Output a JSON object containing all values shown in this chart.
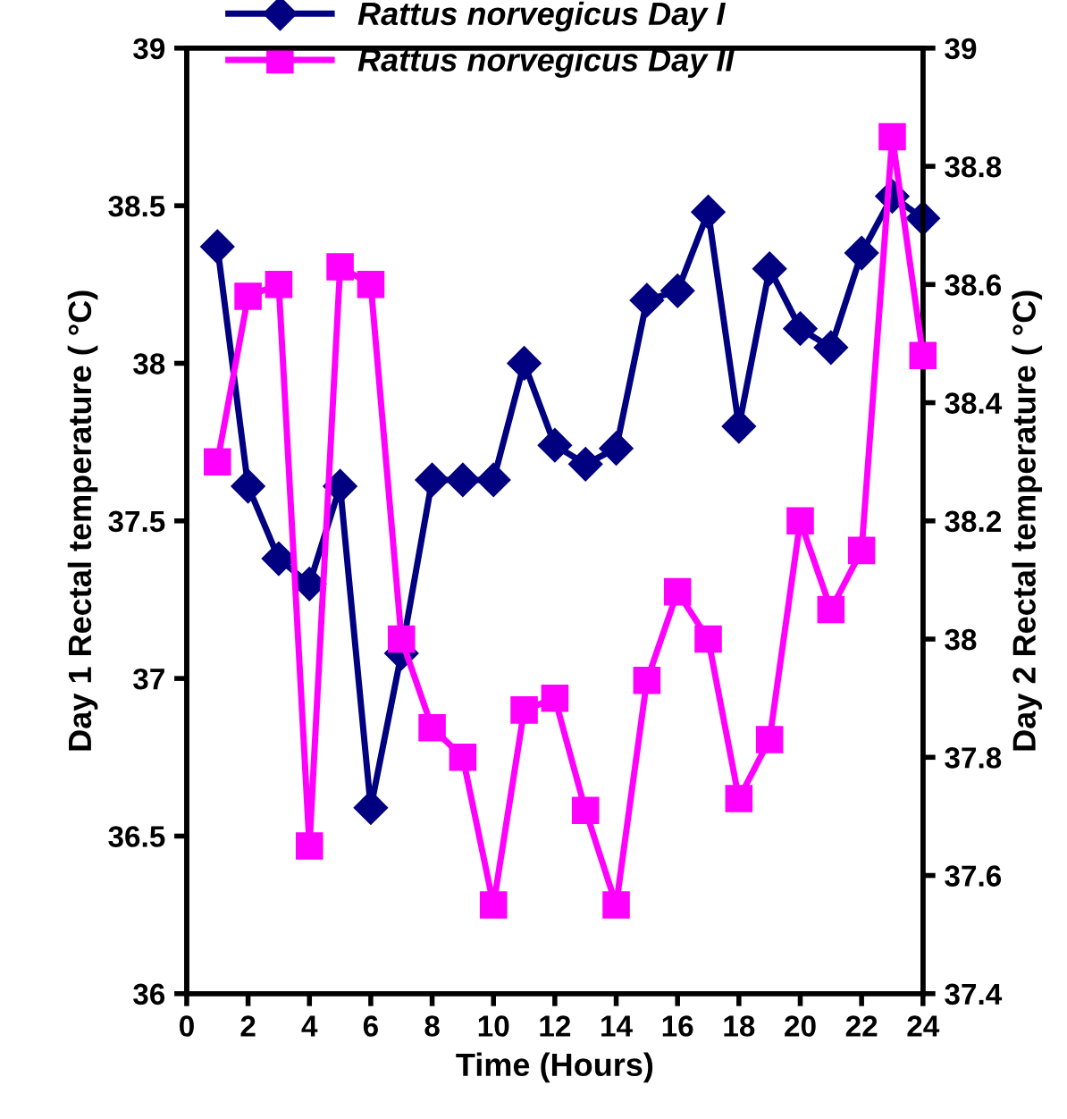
{
  "chart_data": {
    "type": "line",
    "xlabel": "Time (Hours)",
    "ylabel": "Day 1 Rectal temperature ( °C)",
    "y2label": "Day 2 Rectal temperature ( °C)",
    "x": [
      1,
      2,
      3,
      4,
      5,
      6,
      7,
      8,
      9,
      10,
      11,
      12,
      13,
      14,
      15,
      16,
      17,
      18,
      19,
      20,
      21,
      22,
      23,
      24
    ],
    "series": [
      {
        "name": "Rattus norvegicus Day I",
        "color": "#000080",
        "marker": "diamond",
        "values": [
          38.37,
          37.61,
          37.38,
          37.3,
          37.61,
          36.59,
          37.08,
          37.63,
          37.63,
          37.63,
          38.0,
          37.74,
          37.68,
          37.73,
          38.2,
          38.23,
          38.48,
          37.8,
          38.3,
          38.11,
          38.05,
          38.35,
          38.53,
          38.46
        ]
      },
      {
        "name": "Rattus norvegicus Day II",
        "color": "#ff00ff",
        "marker": "square",
        "axis": "y2",
        "values": [
          38.3,
          38.58,
          38.6,
          37.65,
          38.63,
          38.6,
          38.0,
          37.85,
          37.8,
          37.55,
          37.88,
          37.9,
          37.71,
          37.55,
          37.93,
          38.08,
          38.0,
          37.73,
          37.83,
          38.2,
          38.05,
          38.15,
          38.85,
          38.48
        ]
      }
    ],
    "xlim": [
      0,
      24
    ],
    "xticks": [
      0,
      2,
      4,
      6,
      8,
      10,
      12,
      14,
      16,
      18,
      20,
      22,
      24
    ],
    "ylim": [
      36,
      39
    ],
    "yticks": [
      36,
      36.5,
      37,
      37.5,
      38,
      38.5,
      39
    ],
    "y2lim": [
      37.4,
      39
    ],
    "y2ticks": [
      37.4,
      37.6,
      37.8,
      38,
      38.2,
      38.4,
      38.6,
      38.8,
      39
    ],
    "legend": "top",
    "grid": false,
    "line_style": "solid"
  }
}
